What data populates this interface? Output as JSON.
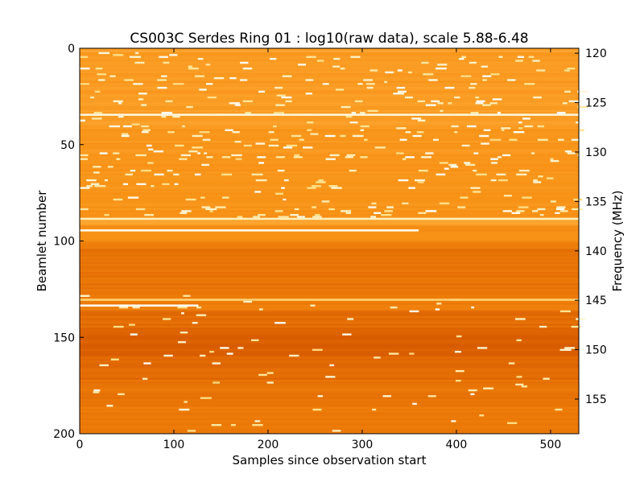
{
  "chart_data": {
    "type": "heatmap",
    "title": "CS003C Serdes Ring 01 : log10(raw data), scale 5.88-6.48",
    "xlabel": "Samples since observation start",
    "ylabel": "Beamlet number",
    "y2label": "Frequency (MHz)",
    "xlim": [
      0,
      530
    ],
    "ylim": [
      200,
      0
    ],
    "y2lim": [
      158.5,
      119.5
    ],
    "x_ticks": [
      0,
      100,
      200,
      300,
      400,
      500
    ],
    "y_ticks": [
      0,
      50,
      100,
      150,
      200
    ],
    "y2_ticks": [
      120,
      125,
      130,
      135,
      140,
      145,
      150,
      155
    ],
    "color_scale": {
      "min": 5.88,
      "max": 6.48,
      "colormap": "afmhot",
      "stops": [
        "#c04000",
        "#d85c00",
        "#ec7a08",
        "#f89418",
        "#ffb040",
        "#ffe28c",
        "#ffffff"
      ]
    },
    "grid": false,
    "legend": "none",
    "row_levels": [
      {
        "from": 0,
        "to": 2,
        "level": 0.58
      },
      {
        "from": 2,
        "to": 32,
        "level": 0.54
      },
      {
        "from": 32,
        "to": 40,
        "level": 0.56
      },
      {
        "from": 40,
        "to": 60,
        "level": 0.52
      },
      {
        "from": 60,
        "to": 88,
        "level": 0.5
      },
      {
        "from": 88,
        "to": 92,
        "level": 0.6
      },
      {
        "from": 92,
        "to": 100,
        "level": 0.46
      },
      {
        "from": 100,
        "to": 104,
        "level": 0.38
      },
      {
        "from": 104,
        "to": 128,
        "level": 0.3
      },
      {
        "from": 128,
        "to": 136,
        "level": 0.36
      },
      {
        "from": 136,
        "to": 145,
        "level": 0.26
      },
      {
        "from": 145,
        "to": 160,
        "level": 0.18
      },
      {
        "from": 160,
        "to": 172,
        "level": 0.24
      },
      {
        "from": 172,
        "to": 186,
        "level": 0.3
      },
      {
        "from": 186,
        "to": 200,
        "level": 0.34
      }
    ],
    "bright_lines": [
      {
        "beamlet": 34.5,
        "x_start": 0,
        "x_end": 530,
        "level": 0.95
      },
      {
        "beamlet": 88.5,
        "x_start": 0,
        "x_end": 530,
        "level": 0.9
      },
      {
        "beamlet": 94.5,
        "x_start": 0,
        "x_end": 360,
        "level": 0.97
      },
      {
        "beamlet": 130.5,
        "x_start": 0,
        "x_end": 530,
        "level": 0.78
      },
      {
        "beamlet": 133.5,
        "x_start": 0,
        "x_end": 126,
        "level": 1.0
      }
    ],
    "rfi_spike_bands": [
      {
        "beamlet_start": 2,
        "beamlet_end": 88,
        "density": 0.012
      },
      {
        "beamlet_start": 128,
        "beamlet_end": 200,
        "density": 0.004
      }
    ]
  }
}
